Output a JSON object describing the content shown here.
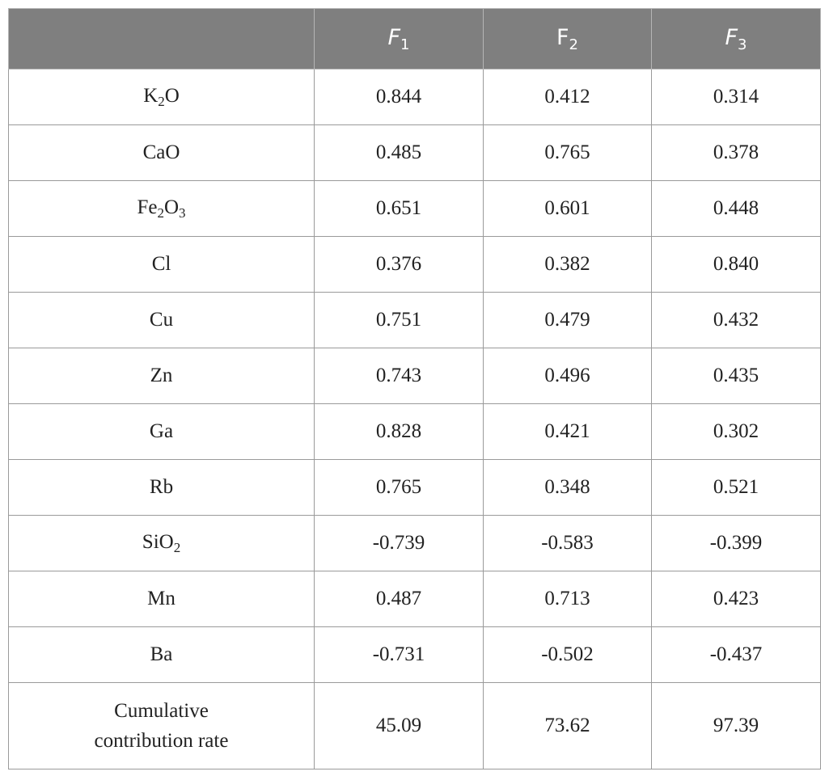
{
  "header": {
    "col0": "",
    "f1": {
      "base": "F",
      "sub": "1"
    },
    "f2": {
      "base": "F",
      "sub": "2"
    },
    "f3": {
      "base": "F",
      "sub": "3"
    }
  },
  "rows": [
    {
      "label": [
        {
          "t": "K"
        },
        {
          "t": "2",
          "sub": true
        },
        {
          "t": "O"
        }
      ],
      "values": [
        "0.844",
        "0.412",
        "0.314"
      ]
    },
    {
      "label": [
        {
          "t": "CaO"
        }
      ],
      "values": [
        "0.485",
        "0.765",
        "0.378"
      ]
    },
    {
      "label": [
        {
          "t": "Fe"
        },
        {
          "t": "2",
          "sub": true
        },
        {
          "t": "O"
        },
        {
          "t": "3",
          "sub": true
        }
      ],
      "values": [
        "0.651",
        "0.601",
        "0.448"
      ]
    },
    {
      "label": [
        {
          "t": "Cl"
        }
      ],
      "values": [
        "0.376",
        "0.382",
        "0.840"
      ]
    },
    {
      "label": [
        {
          "t": "Cu"
        }
      ],
      "values": [
        "0.751",
        "0.479",
        "0.432"
      ]
    },
    {
      "label": [
        {
          "t": "Zn"
        }
      ],
      "values": [
        "0.743",
        "0.496",
        "0.435"
      ]
    },
    {
      "label": [
        {
          "t": "Ga"
        }
      ],
      "values": [
        "0.828",
        "0.421",
        "0.302"
      ]
    },
    {
      "label": [
        {
          "t": "Rb"
        }
      ],
      "values": [
        "0.765",
        "0.348",
        "0.521"
      ]
    },
    {
      "label": [
        {
          "t": "SiO"
        },
        {
          "t": "2",
          "sub": true
        }
      ],
      "values": [
        "-0.739",
        "-0.583",
        "-0.399"
      ]
    },
    {
      "label": [
        {
          "t": "Mn"
        }
      ],
      "values": [
        "0.487",
        "0.713",
        "0.423"
      ]
    },
    {
      "label": [
        {
          "t": "Ba"
        }
      ],
      "values": [
        "-0.731",
        "-0.502",
        "-0.437"
      ]
    }
  ],
  "footer_row": {
    "label_line1": "Cumulative",
    "label_line2": "contribution rate",
    "values": [
      "45.09",
      "73.62",
      "97.39"
    ]
  },
  "colors": {
    "header_bg": "#7f7f7f",
    "header_text": "#ffffff",
    "border": "#9a9a9a"
  }
}
